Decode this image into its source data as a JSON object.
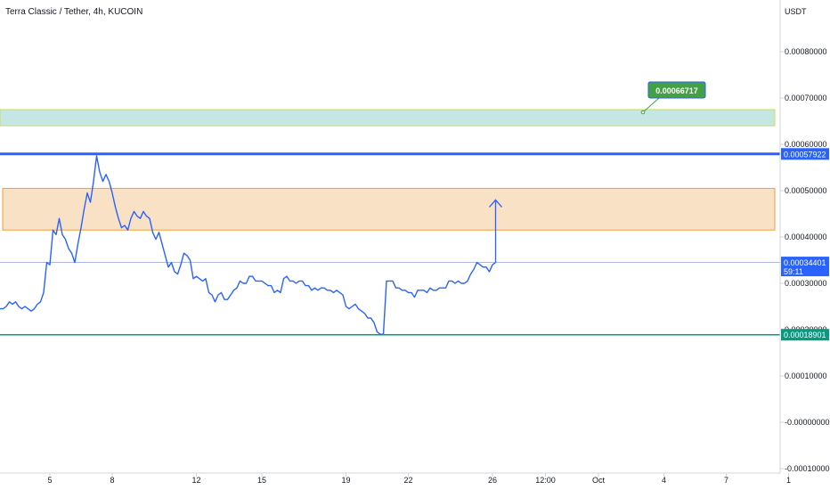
{
  "chart_data": {
    "type": "line",
    "title": "Terra Classic / Tether, 4h, KUCOIN",
    "currency": "USDT",
    "ylim": [
      -0.0001,
      0.00087
    ],
    "y_ticks": [
      0.0008,
      0.0007,
      0.0006,
      0.0005,
      0.0004,
      0.0003,
      0.0002,
      0.0001,
      0.0,
      -0.0001
    ],
    "y_tick_labels": [
      "0.00080000",
      "0.00070000",
      "0.00060000",
      "0.00050000",
      "0.00040000",
      "0.00030000",
      "0.00020000",
      "0.00010000",
      "-0.00000000",
      "-0.00010000"
    ],
    "x_ticks": [
      {
        "i": 16,
        "label": "5"
      },
      {
        "i": 36,
        "label": "8"
      },
      {
        "i": 63,
        "label": "12"
      },
      {
        "i": 84,
        "label": "15"
      },
      {
        "i": 111,
        "label": "19"
      },
      {
        "i": 131,
        "label": "22"
      },
      {
        "i": 158,
        "label": "26"
      },
      {
        "i": 175,
        "label": "12:00"
      },
      {
        "i": 192,
        "label": "Oct"
      },
      {
        "i": 213,
        "label": "4"
      },
      {
        "i": 233,
        "label": "7"
      },
      {
        "i": 253,
        "label": "1"
      }
    ],
    "series": [
      {
        "color": "#2962ff",
        "values": [
          0.000245,
          0.000245,
          0.00025,
          0.00026,
          0.000255,
          0.00026,
          0.00025,
          0.000245,
          0.00025,
          0.000245,
          0.00024,
          0.000245,
          0.000255,
          0.00026,
          0.00028,
          0.000345,
          0.00034,
          0.000415,
          0.000405,
          0.00044,
          0.000405,
          0.000395,
          0.000375,
          0.000365,
          0.000345,
          0.000385,
          0.00042,
          0.00046,
          0.000495,
          0.000475,
          0.00052,
          0.000575,
          0.00054,
          0.00052,
          0.000535,
          0.00052,
          0.000495,
          0.000465,
          0.00044,
          0.00042,
          0.000425,
          0.000415,
          0.00044,
          0.000455,
          0.000445,
          0.00044,
          0.000455,
          0.000445,
          0.00044,
          0.00041,
          0.000395,
          0.00041,
          0.000385,
          0.00036,
          0.000335,
          0.000345,
          0.000325,
          0.00032,
          0.00034,
          0.000365,
          0.00036,
          0.00035,
          0.00031,
          0.000315,
          0.00031,
          0.000305,
          0.00031,
          0.00028,
          0.000275,
          0.00026,
          0.000275,
          0.00028,
          0.000265,
          0.000265,
          0.000275,
          0.000285,
          0.00029,
          0.000305,
          0.0003,
          0.0003,
          0.000315,
          0.000315,
          0.000305,
          0.000305,
          0.000305,
          0.0003,
          0.000295,
          0.000295,
          0.00028,
          0.000285,
          0.00028,
          0.00031,
          0.000315,
          0.000305,
          0.000305,
          0.0003,
          0.000305,
          0.000305,
          0.000295,
          0.000295,
          0.000285,
          0.00029,
          0.000285,
          0.00029,
          0.00029,
          0.000285,
          0.000285,
          0.00028,
          0.000285,
          0.00028,
          0.000275,
          0.00025,
          0.000245,
          0.00025,
          0.000255,
          0.000245,
          0.00024,
          0.000235,
          0.000225,
          0.000225,
          0.000215,
          0.000195,
          0.00019,
          0.00019,
          0.000305,
          0.000305,
          0.000305,
          0.00029,
          0.00029,
          0.000285,
          0.000285,
          0.00028,
          0.00028,
          0.00027,
          0.000285,
          0.000285,
          0.000285,
          0.00028,
          0.00029,
          0.000285,
          0.000285,
          0.00029,
          0.00029,
          0.00029,
          0.000305,
          0.000305,
          0.0003,
          0.000305,
          0.0003,
          0.0003,
          0.000305,
          0.00032,
          0.00033,
          0.000345,
          0.00034,
          0.000335,
          0.000335,
          0.000325,
          0.00034,
          0.000345
        ]
      }
    ],
    "levels": [
      {
        "value": 0.00057922,
        "label": "0.00057922",
        "color": "#2962ff"
      },
      {
        "value": 0.00018901,
        "label": "0.00018901",
        "color": "#089981"
      }
    ],
    "current_price": {
      "label": "0.00034401",
      "countdown": "59:11",
      "color": "#2962ff"
    },
    "zones": [
      {
        "from": 0.00064,
        "to": 0.000675,
        "fill": "rgba(178,223,219,0.75)",
        "stroke": "#c8e055"
      },
      {
        "from": 0.000415,
        "to": 0.000505,
        "fill": "rgba(242,200,150,0.55)",
        "stroke": "#f0a030"
      }
    ],
    "target_callout": {
      "label": "0.00066717",
      "color": "#43a047"
    },
    "arrow": {
      "from": 0.000345,
      "to": 0.00048
    }
  }
}
